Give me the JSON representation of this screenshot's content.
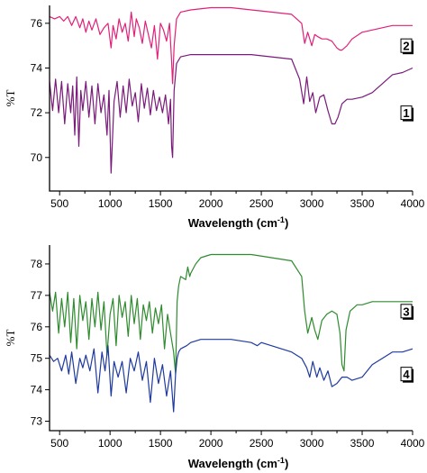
{
  "chart_data": [
    {
      "type": "line",
      "title": "",
      "xlabel": "Wavelength (cm",
      "xlabel_sup": "-1",
      "xlabel_end": ")",
      "ylabel": "%T",
      "xlim": [
        400,
        4000
      ],
      "ylim": [
        68.5,
        76.8
      ],
      "xticks": [
        500,
        1000,
        1500,
        2000,
        2500,
        3000,
        3500,
        4000
      ],
      "xtick_labels": [
        "500",
        "1000",
        "1500",
        "2000",
        "2500",
        "3000",
        "3500",
        "4000"
      ],
      "yticks": [
        70,
        72,
        74,
        76
      ],
      "ytick_labels": [
        "70",
        "72",
        "74",
        "76"
      ],
      "grid": false,
      "series": [
        {
          "name": "2",
          "color": "#e0217a",
          "label_at": [
            3920,
            75.0
          ],
          "x": [
            400,
            450,
            500,
            540,
            580,
            620,
            660,
            700,
            730,
            760,
            790,
            820,
            860,
            900,
            940,
            980,
            1010,
            1030,
            1060,
            1090,
            1120,
            1150,
            1180,
            1210,
            1240,
            1260,
            1290,
            1320,
            1350,
            1380,
            1410,
            1440,
            1470,
            1500,
            1530,
            1560,
            1590,
            1610,
            1620,
            1635,
            1660,
            1700,
            1800,
            2000,
            2200,
            2400,
            2600,
            2800,
            2900,
            2930,
            2960,
            3000,
            3030,
            3060,
            3100,
            3150,
            3200,
            3250,
            3280,
            3300,
            3350,
            3400,
            3500,
            3600,
            3700,
            3800,
            3900,
            4000
          ],
          "y": [
            76.3,
            76.2,
            76.3,
            76.1,
            76.3,
            75.9,
            76.3,
            75.8,
            76.2,
            75.6,
            76.1,
            75.7,
            76.2,
            75.5,
            75.8,
            76.0,
            74.9,
            75.9,
            75.3,
            76.2,
            75.6,
            76.0,
            75.2,
            76.5,
            75.4,
            76.2,
            75.8,
            75.1,
            76.1,
            75.5,
            74.9,
            75.9,
            74.4,
            76.0,
            75.7,
            75.2,
            76.0,
            74.3,
            73.3,
            75.0,
            76.2,
            76.5,
            76.6,
            76.7,
            76.7,
            76.6,
            76.5,
            76.4,
            76.0,
            75.1,
            75.6,
            75.0,
            75.5,
            75.4,
            75.3,
            75.3,
            75.2,
            74.9,
            74.8,
            74.8,
            75.0,
            75.3,
            75.6,
            75.7,
            75.8,
            75.9,
            75.9,
            75.9
          ]
        },
        {
          "name": "1",
          "color": "#7a1a7a",
          "label_at": [
            3920,
            72.0
          ],
          "x": [
            400,
            430,
            460,
            490,
            520,
            550,
            580,
            610,
            630,
            650,
            670,
            690,
            710,
            730,
            760,
            790,
            820,
            850,
            880,
            910,
            940,
            970,
            990,
            1010,
            1040,
            1070,
            1100,
            1130,
            1160,
            1190,
            1220,
            1250,
            1280,
            1310,
            1340,
            1370,
            1400,
            1430,
            1460,
            1490,
            1520,
            1550,
            1580,
            1600,
            1610,
            1620,
            1635,
            1660,
            1700,
            1800,
            2000,
            2200,
            2400,
            2600,
            2800,
            2880,
            2920,
            2950,
            2980,
            3010,
            3040,
            3080,
            3120,
            3160,
            3200,
            3230,
            3260,
            3280,
            3300,
            3350,
            3400,
            3500,
            3600,
            3700,
            3800,
            3900,
            4000
          ],
          "y": [
            73.4,
            72.1,
            73.5,
            72.0,
            73.4,
            71.5,
            73.3,
            72.0,
            73.2,
            71.0,
            73.6,
            70.5,
            73.0,
            72.1,
            73.4,
            71.8,
            73.2,
            71.5,
            73.3,
            72.0,
            72.8,
            71.0,
            73.0,
            69.3,
            72.5,
            73.4,
            71.8,
            73.2,
            72.0,
            73.5,
            72.3,
            72.9,
            71.6,
            73.3,
            72.2,
            73.1,
            71.9,
            73.0,
            72.1,
            72.7,
            72.0,
            72.8,
            71.5,
            72.6,
            70.5,
            70.0,
            73.0,
            74.2,
            74.5,
            74.6,
            74.6,
            74.6,
            74.6,
            74.5,
            74.4,
            73.5,
            72.4,
            73.6,
            72.5,
            72.9,
            72.0,
            72.7,
            72.8,
            72.1,
            71.5,
            71.5,
            71.8,
            72.1,
            72.4,
            72.6,
            72.6,
            72.7,
            72.9,
            73.3,
            73.7,
            73.8,
            74.0
          ]
        }
      ]
    },
    {
      "type": "line",
      "title": "",
      "xlabel": "Wavelength (cm",
      "xlabel_sup": "-1",
      "xlabel_end": ")",
      "ylabel": "%T",
      "xlim": [
        400,
        4000
      ],
      "ylim": [
        72.7,
        78.6
      ],
      "xticks": [
        500,
        1000,
        1500,
        2000,
        2500,
        3000,
        3500,
        4000
      ],
      "xtick_labels": [
        "500",
        "1000",
        "1500",
        "2000",
        "2500",
        "3000",
        "3500",
        "4000"
      ],
      "yticks": [
        73,
        74,
        75,
        76,
        77,
        78
      ],
      "ytick_labels": [
        "73",
        "74",
        "75",
        "76",
        "77",
        "78"
      ],
      "grid": false,
      "series": [
        {
          "name": "3",
          "color": "#2e8b2e",
          "label_at": [
            3920,
            76.5
          ],
          "x": [
            400,
            430,
            460,
            490,
            520,
            550,
            580,
            610,
            640,
            670,
            700,
            730,
            760,
            790,
            820,
            850,
            880,
            910,
            940,
            970,
            1000,
            1030,
            1060,
            1090,
            1120,
            1150,
            1180,
            1210,
            1240,
            1270,
            1300,
            1330,
            1360,
            1390,
            1420,
            1450,
            1480,
            1510,
            1540,
            1570,
            1600,
            1630,
            1650,
            1665,
            1680,
            1700,
            1750,
            1770,
            1790,
            1800,
            1850,
            1900,
            2000,
            2200,
            2400,
            2600,
            2800,
            2900,
            2930,
            2960,
            3000,
            3030,
            3060,
            3100,
            3150,
            3200,
            3250,
            3280,
            3300,
            3320,
            3340,
            3380,
            3450,
            3500,
            3600,
            3700,
            3800,
            4000
          ],
          "y": [
            77.1,
            76.5,
            77.1,
            75.8,
            76.9,
            76.0,
            77.1,
            75.5,
            76.9,
            75.3,
            77.0,
            76.2,
            76.8,
            75.6,
            76.9,
            76.0,
            77.1,
            75.9,
            76.8,
            75.1,
            76.4,
            76.9,
            75.4,
            77.0,
            76.3,
            76.8,
            75.7,
            77.0,
            76.1,
            76.9,
            75.6,
            76.7,
            76.2,
            76.8,
            75.8,
            76.6,
            76.1,
            76.7,
            75.3,
            76.4,
            75.8,
            75.2,
            74.5,
            76.8,
            77.3,
            77.6,
            77.5,
            77.9,
            77.6,
            77.7,
            78.0,
            78.2,
            78.3,
            78.3,
            78.3,
            78.2,
            78.1,
            77.6,
            76.5,
            75.8,
            76.3,
            75.9,
            75.6,
            76.2,
            76.4,
            76.5,
            76.4,
            75.8,
            74.8,
            74.6,
            75.9,
            76.5,
            76.7,
            76.7,
            76.8,
            76.8,
            76.8,
            76.8
          ]
        },
        {
          "name": "4",
          "color": "#1f3a9e",
          "label_at": [
            3920,
            74.5
          ],
          "x": [
            400,
            440,
            480,
            520,
            560,
            590,
            620,
            660,
            700,
            730,
            760,
            800,
            840,
            880,
            920,
            950,
            980,
            1010,
            1040,
            1080,
            1120,
            1160,
            1200,
            1240,
            1280,
            1320,
            1360,
            1400,
            1440,
            1480,
            1520,
            1560,
            1600,
            1630,
            1650,
            1665,
            1680,
            1700,
            1760,
            1800,
            1900,
            2000,
            2200,
            2400,
            2460,
            2500,
            2600,
            2800,
            2900,
            2950,
            2980,
            3010,
            3050,
            3080,
            3120,
            3160,
            3200,
            3250,
            3300,
            3350,
            3400,
            3500,
            3600,
            3700,
            3800,
            3900,
            4000
          ],
          "y": [
            75.1,
            74.9,
            75.0,
            74.6,
            75.1,
            74.5,
            75.2,
            74.2,
            75.0,
            74.7,
            75.1,
            74.6,
            75.3,
            73.9,
            75.2,
            74.6,
            75.4,
            73.8,
            74.9,
            74.4,
            74.9,
            73.9,
            75.0,
            74.6,
            75.2,
            74.3,
            74.9,
            73.6,
            75.0,
            74.2,
            74.8,
            73.8,
            74.6,
            73.3,
            74.5,
            75.0,
            75.2,
            75.3,
            75.4,
            75.5,
            75.6,
            75.6,
            75.6,
            75.5,
            75.4,
            75.5,
            75.4,
            75.2,
            75.0,
            74.7,
            74.4,
            74.9,
            74.4,
            74.7,
            74.3,
            74.6,
            74.1,
            74.2,
            74.4,
            74.4,
            74.3,
            74.4,
            74.8,
            75.0,
            75.2,
            75.2,
            75.3
          ]
        }
      ]
    }
  ]
}
